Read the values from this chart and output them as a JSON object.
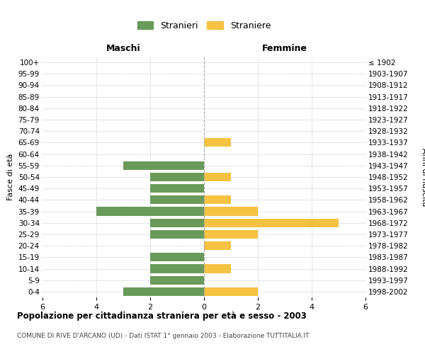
{
  "age_groups": [
    "100+",
    "95-99",
    "90-94",
    "85-89",
    "80-84",
    "75-79",
    "70-74",
    "65-69",
    "60-64",
    "55-59",
    "50-54",
    "45-49",
    "40-44",
    "35-39",
    "30-34",
    "25-29",
    "20-24",
    "15-19",
    "10-14",
    "5-9",
    "0-4"
  ],
  "birth_years": [
    "≤ 1902",
    "1903-1907",
    "1908-1912",
    "1913-1917",
    "1918-1922",
    "1923-1927",
    "1928-1932",
    "1933-1937",
    "1938-1942",
    "1943-1947",
    "1948-1952",
    "1953-1957",
    "1958-1962",
    "1963-1967",
    "1968-1972",
    "1973-1977",
    "1978-1982",
    "1983-1987",
    "1988-1992",
    "1993-1997",
    "1998-2002"
  ],
  "maschi": [
    0,
    0,
    0,
    0,
    0,
    0,
    0,
    0,
    0,
    3,
    2,
    2,
    2,
    4,
    2,
    2,
    0,
    2,
    2,
    2,
    3
  ],
  "femmine": [
    0,
    0,
    0,
    0,
    0,
    0,
    0,
    1,
    0,
    0,
    1,
    0,
    1,
    2,
    5,
    2,
    1,
    0,
    1,
    0,
    2
  ],
  "maschi_color": "#6a9a5a",
  "femmine_color": "#f5c242",
  "title": "Popolazione per cittadinanza straniera per età e sesso - 2003",
  "subtitle": "COMUNE DI RIVE D'ARCANO (UD) - Dati ISTAT 1° gennaio 2003 - Elaborazione TUTTITALIA.IT",
  "xlabel_left": "Maschi",
  "xlabel_right": "Femmine",
  "ylabel_left": "Fasce di età",
  "ylabel_right": "Anni di nascita",
  "legend_maschi": "Stranieri",
  "legend_femmine": "Straniere",
  "xlim": 6,
  "background_color": "#ffffff",
  "grid_color": "#cccccc",
  "bar_height": 0.75
}
